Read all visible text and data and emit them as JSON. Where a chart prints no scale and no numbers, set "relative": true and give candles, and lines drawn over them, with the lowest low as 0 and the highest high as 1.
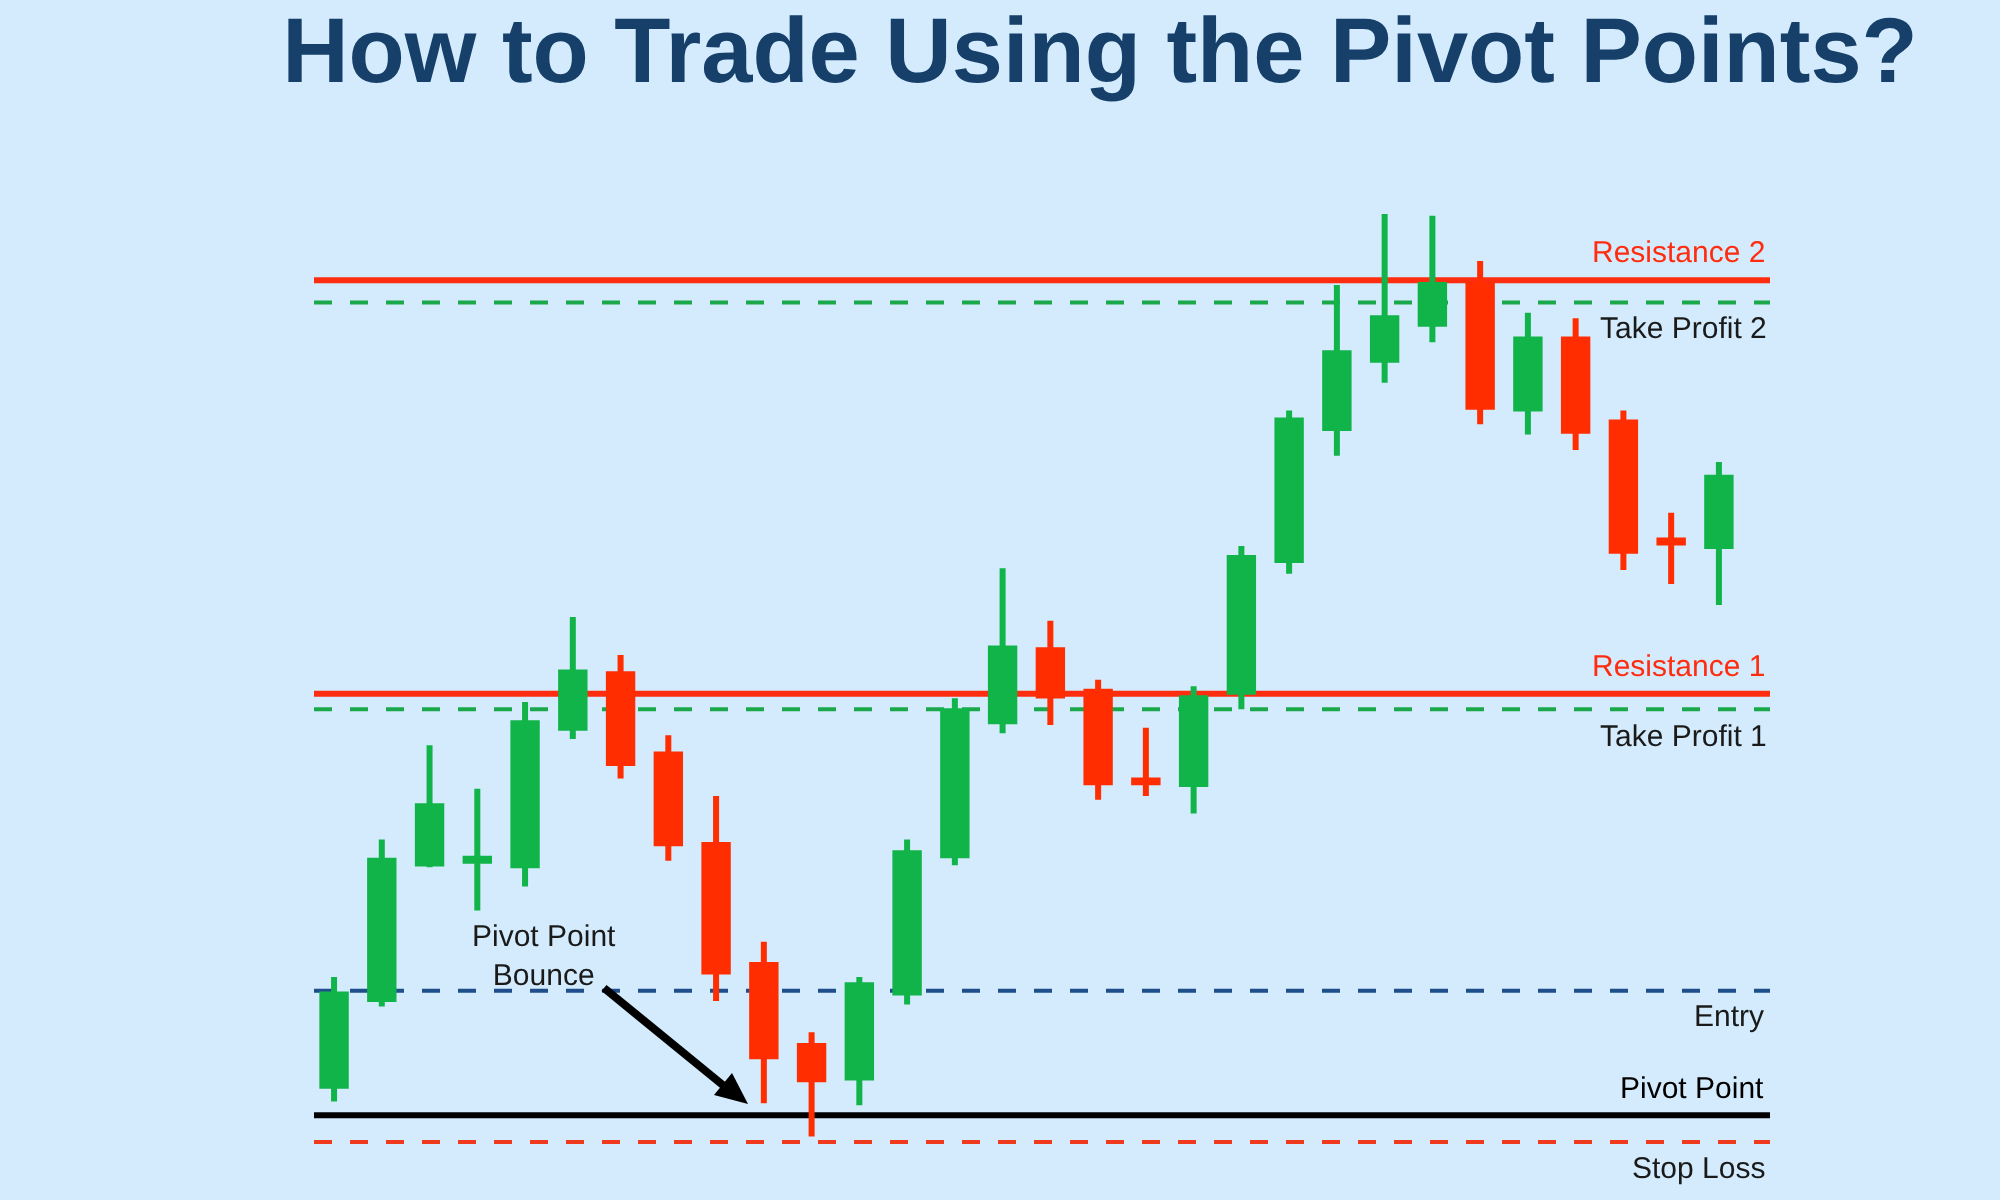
{
  "chart_data": {
    "type": "candlestick",
    "title": "How to Trade Using the Pivot Points?",
    "relative": true,
    "grid": false,
    "categories": [
      null,
      null,
      null,
      null,
      null,
      null,
      null,
      null,
      null,
      null,
      null,
      null,
      null,
      null,
      null,
      null,
      null,
      null,
      null,
      null,
      null,
      null,
      null,
      null,
      null,
      null,
      null,
      null,
      null,
      null
    ],
    "colors": [
      "#10b449",
      "#10b449",
      "#10b449",
      "#10b449",
      "#10b449",
      "#10b449",
      "#ff2d00",
      "#ff2d00",
      "#ff2d00",
      "#ff2d00",
      "#ff2d00",
      "#10b449",
      "#10b449",
      "#10b449",
      "#10b449",
      "#ff2d00",
      "#ff2d00",
      "#ff2d00",
      "#10b449",
      "#10b449",
      "#10b449",
      "#10b449",
      "#10b449",
      "#10b449",
      "#ff2d00",
      "#10b449",
      "#ff2d00",
      "#ff2d00",
      "#ff2d00",
      "#10b449"
    ],
    "ohlc": [
      [
        0.055,
        0.173,
        0.038,
        0.154
      ],
      [
        0.149,
        0.322,
        0.141,
        0.299
      ],
      [
        0.296,
        0.424,
        0.292,
        0.358
      ],
      [
        0.299,
        0.377,
        0.245,
        0.301
      ],
      [
        0.294,
        0.471,
        0.271,
        0.448
      ],
      [
        0.443,
        0.563,
        0.431,
        0.503
      ],
      [
        0.501,
        0.522,
        0.388,
        0.405
      ],
      [
        0.414,
        0.435,
        0.299,
        0.318
      ],
      [
        0.316,
        0.369,
        0.147,
        0.179
      ],
      [
        0.186,
        0.211,
        0.036,
        0.087
      ],
      [
        0.098,
        0.113,
        0,
        0.062
      ],
      [
        0.064,
        0.173,
        0.034,
        0.164
      ],
      [
        0.156,
        0.322,
        0.143,
        0.307
      ],
      [
        0.305,
        0.475,
        0.294,
        0.461
      ],
      [
        0.45,
        0.616,
        0.437,
        0.529
      ],
      [
        0.527,
        0.559,
        0.446,
        0.478
      ],
      [
        0.482,
        0.495,
        0.365,
        0.384
      ],
      [
        0.386,
        0.443,
        0.369,
        0.384
      ],
      [
        0.382,
        0.488,
        0.35,
        0.475
      ],
      [
        0.482,
        0.64,
        0.463,
        0.627
      ],
      [
        0.625,
        0.787,
        0.61,
        0.776
      ],
      [
        0.768,
        0.923,
        0.738,
        0.849
      ],
      [
        0.842,
        1,
        0.817,
        0.887
      ],
      [
        0.881,
        0.998,
        0.861,
        0.923
      ],
      [
        0.923,
        0.949,
        0.772,
        0.791
      ],
      [
        0.789,
        0.893,
        0.761,
        0.864
      ],
      [
        0.864,
        0.887,
        0.744,
        0.765
      ],
      [
        0.774,
        0.787,
        0.614,
        0.635
      ],
      [
        0.646,
        0.676,
        0.599,
        0.644
      ],
      [
        0.64,
        0.731,
        0.576,
        0.714
      ]
    ],
    "ref_lines": [
      {
        "axis": "y",
        "value": 0.928,
        "label": "Resistance 2",
        "color": "#ff2d0f"
      },
      {
        "axis": "y",
        "value": 0.48,
        "label": "Resistance 1",
        "color": "#ff2d0f"
      },
      {
        "axis": "y",
        "value": 0.023,
        "label": "Pivot Point",
        "color": "#000000"
      },
      {
        "axis": "y",
        "value": 0.904,
        "label": "Take Profit 2",
        "color": "#1aa84a",
        "line_style": "dashed"
      },
      {
        "axis": "y",
        "value": 0.463,
        "label": "Take Profit 1",
        "color": "#1aa84a",
        "line_style": "dashed"
      },
      {
        "axis": "y",
        "value": 0.158,
        "label": "Entry",
        "color": "#1f4e8c",
        "line_style": "dashed"
      },
      {
        "axis": "y",
        "value": -0.006,
        "label": "Stop Loss",
        "color": "#f03a1e",
        "line_style": "dashed"
      }
    ],
    "annotations": [
      "Pivot Point Bounce"
    ]
  }
}
